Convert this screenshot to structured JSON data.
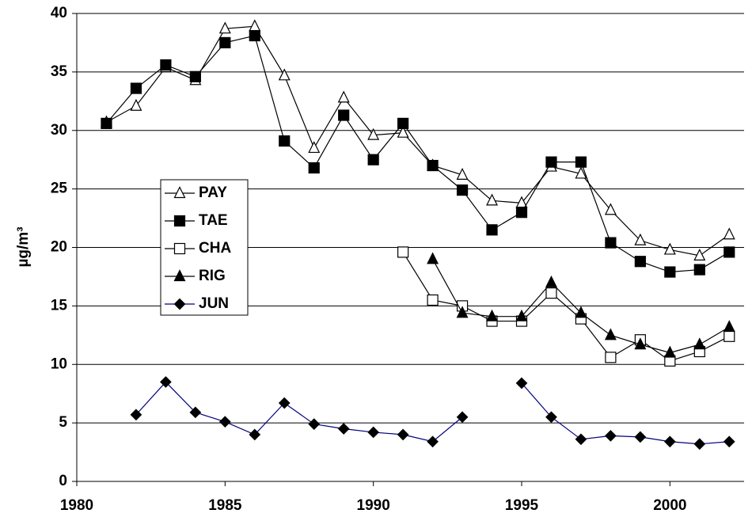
{
  "chart_data": {
    "type": "line",
    "y_label": "µg/m³",
    "x": [
      1981,
      1982,
      1983,
      1984,
      1985,
      1986,
      1987,
      1988,
      1989,
      1990,
      1991,
      1992,
      1993,
      1994,
      1995,
      1996,
      1997,
      1998,
      1999,
      2000,
      2001,
      2002
    ],
    "xlim": [
      1980,
      2002.5
    ],
    "xticks": [
      1980,
      1985,
      1990,
      1995,
      2000
    ],
    "ylim": [
      0,
      40
    ],
    "yticks": [
      0,
      5,
      10,
      15,
      20,
      25,
      30,
      35,
      40
    ],
    "grid": true,
    "series": [
      {
        "name": "PAY",
        "color": "#000000",
        "marker": "triangle-open",
        "values": [
          30.7,
          32.1,
          35.4,
          34.3,
          38.7,
          38.9,
          34.7,
          28.5,
          32.8,
          29.6,
          29.8,
          27.0,
          26.2,
          24.0,
          23.8,
          26.9,
          26.3,
          23.2,
          20.6,
          19.8,
          19.3,
          21.1
        ]
      },
      {
        "name": "TAE",
        "color": "#000000",
        "marker": "square",
        "values": [
          30.6,
          33.6,
          35.6,
          34.6,
          37.5,
          38.1,
          29.1,
          26.8,
          31.3,
          27.5,
          30.6,
          27.0,
          24.9,
          21.5,
          23.0,
          27.3,
          27.3,
          20.4,
          18.8,
          17.9,
          18.1,
          19.6
        ]
      },
      {
        "name": "CHA",
        "color": "#000000",
        "marker": "square-open",
        "values": [
          null,
          null,
          null,
          null,
          null,
          null,
          null,
          null,
          null,
          null,
          19.6,
          15.5,
          15.0,
          13.7,
          13.7,
          16.1,
          13.9,
          10.6,
          12.1,
          10.3,
          11.1,
          12.4
        ]
      },
      {
        "name": "RIG",
        "color": "#000000",
        "marker": "triangle",
        "values": [
          null,
          null,
          null,
          null,
          null,
          null,
          null,
          null,
          null,
          null,
          null,
          19.0,
          14.4,
          14.1,
          14.1,
          17.0,
          14.4,
          12.5,
          11.7,
          11.0,
          11.7,
          13.2
        ]
      },
      {
        "name": "JUN",
        "color": "#000080",
        "marker": "diamond",
        "values": [
          null,
          5.7,
          8.5,
          5.9,
          5.1,
          4.0,
          6.7,
          4.9,
          4.5,
          4.2,
          4.0,
          3.4,
          5.5,
          null,
          8.4,
          5.5,
          3.6,
          3.9,
          3.8,
          3.4,
          3.2,
          3.4
        ]
      }
    ]
  }
}
